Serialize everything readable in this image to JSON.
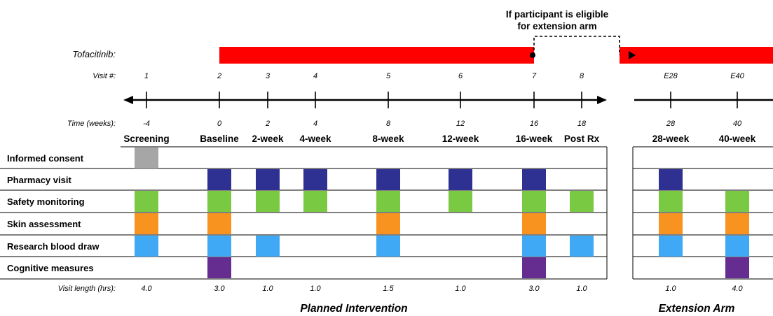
{
  "note": "If participant is eligible for extension arm",
  "note_lines": [
    "If participant is eligible",
    "for extension arm"
  ],
  "drug_label": "Tofacitinib:",
  "visit_label": "Visit #:",
  "time_label": "Time (weeks):",
  "length_label": "Visit length (hrs):",
  "sections": {
    "planned": "Planned Intervention",
    "extension": "Extension Arm"
  },
  "colors": {
    "drug_bar": "#ff0000",
    "Informed consent": "#a6a6a6",
    "Pharmacy visit": "#2e3192",
    "Safety monitoring": "#7ac943",
    "Skin assessment": "#f7931e",
    "Research blood draw": "#3fa9f5",
    "Cognitive measures": "#662d91"
  },
  "activities": [
    "Informed consent",
    "Pharmacy visit",
    "Safety monitoring",
    "Skin assessment",
    "Research blood draw",
    "Cognitive measures"
  ],
  "visits": [
    {
      "visit": "1",
      "time": "-4",
      "name": "Screening",
      "length": "4.0",
      "arm": "planned",
      "activities": [
        "Informed consent",
        "Safety monitoring",
        "Skin assessment",
        "Research blood draw"
      ]
    },
    {
      "visit": "2",
      "time": "0",
      "name": "Baseline",
      "length": "3.0",
      "arm": "planned",
      "activities": [
        "Pharmacy visit",
        "Safety monitoring",
        "Skin assessment",
        "Research blood draw",
        "Cognitive measures"
      ]
    },
    {
      "visit": "3",
      "time": "2",
      "name": "2-week",
      "length": "1.0",
      "arm": "planned",
      "activities": [
        "Pharmacy visit",
        "Safety monitoring",
        "Research blood draw"
      ]
    },
    {
      "visit": "4",
      "time": "4",
      "name": "4-week",
      "length": "1.0",
      "arm": "planned",
      "activities": [
        "Pharmacy visit",
        "Safety monitoring"
      ]
    },
    {
      "visit": "5",
      "time": "8",
      "name": "8-week",
      "length": "1.5",
      "arm": "planned",
      "activities": [
        "Pharmacy visit",
        "Safety monitoring",
        "Skin assessment",
        "Research blood draw"
      ]
    },
    {
      "visit": "6",
      "time": "12",
      "name": "12-week",
      "length": "1.0",
      "arm": "planned",
      "activities": [
        "Pharmacy visit",
        "Safety monitoring"
      ]
    },
    {
      "visit": "7",
      "time": "16",
      "name": "16-week",
      "length": "3.0",
      "arm": "planned",
      "activities": [
        "Pharmacy visit",
        "Safety monitoring",
        "Skin assessment",
        "Research blood draw",
        "Cognitive measures"
      ]
    },
    {
      "visit": "8",
      "time": "18",
      "name": "Post Rx",
      "length": "1.0",
      "arm": "planned",
      "activities": [
        "Safety monitoring",
        "Research blood draw"
      ]
    },
    {
      "visit": "E28",
      "time": "28",
      "name": "28-week",
      "length": "1.0",
      "arm": "extension",
      "activities": [
        "Pharmacy visit",
        "Safety monitoring",
        "Skin assessment",
        "Research blood draw"
      ]
    },
    {
      "visit": "E40",
      "time": "40",
      "name": "40-week",
      "length": "4.0",
      "arm": "extension",
      "activities": [
        "Safety monitoring",
        "Skin assessment",
        "Research blood draw",
        "Cognitive measures"
      ]
    }
  ]
}
